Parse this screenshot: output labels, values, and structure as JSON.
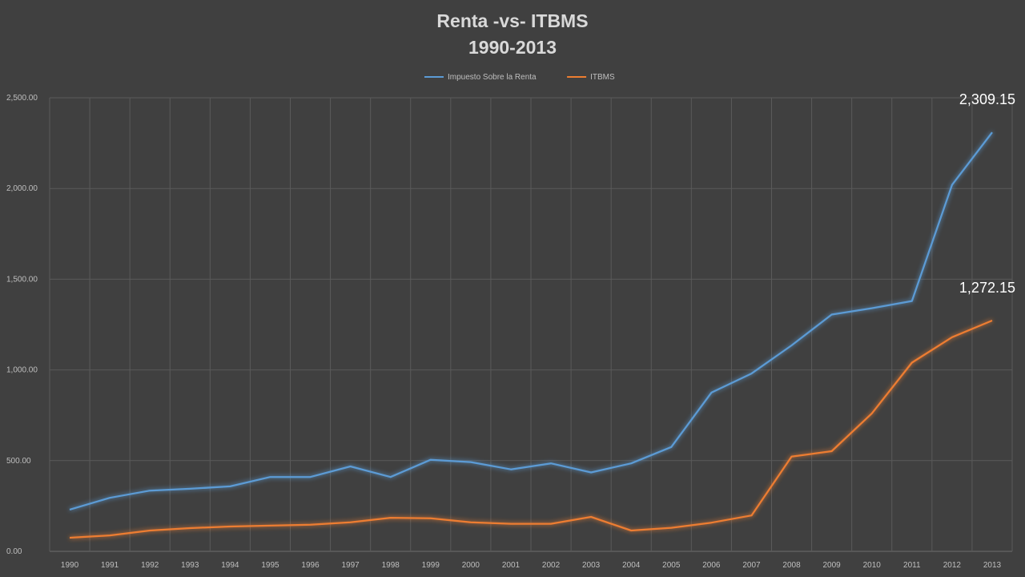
{
  "chart_data": {
    "type": "line",
    "title": "Renta -vs- ITBMS",
    "subtitle": "1990-2013",
    "xlabel": "",
    "ylabel": "",
    "ylim": [
      0,
      2500
    ],
    "yticks": [
      "0.00",
      "500.00",
      "1,000.00",
      "1,500.00",
      "2,000.00",
      "2,500.00"
    ],
    "grid": true,
    "legend": "top-center",
    "categories": [
      "1990",
      "1991",
      "1992",
      "1993",
      "1994",
      "1995",
      "1996",
      "1997",
      "1998",
      "1999",
      "2000",
      "2001",
      "2002",
      "2003",
      "2004",
      "2005",
      "2006",
      "2007",
      "2008",
      "2009",
      "2010",
      "2011",
      "2012",
      "2013"
    ],
    "series": [
      {
        "name": "Impuesto Sobre la Renta",
        "color": "#5b9bd5",
        "values": [
          230,
          295,
          335,
          345,
          358,
          410,
          410,
          468,
          410,
          505,
          492,
          452,
          485,
          435,
          485,
          575,
          875,
          980,
          1135,
          1305,
          1340,
          1380,
          2020,
          2309.15
        ],
        "end_label": "2,309.15"
      },
      {
        "name": "ITBMS",
        "color": "#ed7d31",
        "values": [
          75,
          88,
          115,
          128,
          137,
          142,
          147,
          160,
          185,
          182,
          160,
          152,
          152,
          190,
          115,
          130,
          158,
          198,
          522,
          552,
          760,
          1040,
          1180,
          1272.15
        ],
        "end_label": "1,272.15"
      }
    ]
  }
}
